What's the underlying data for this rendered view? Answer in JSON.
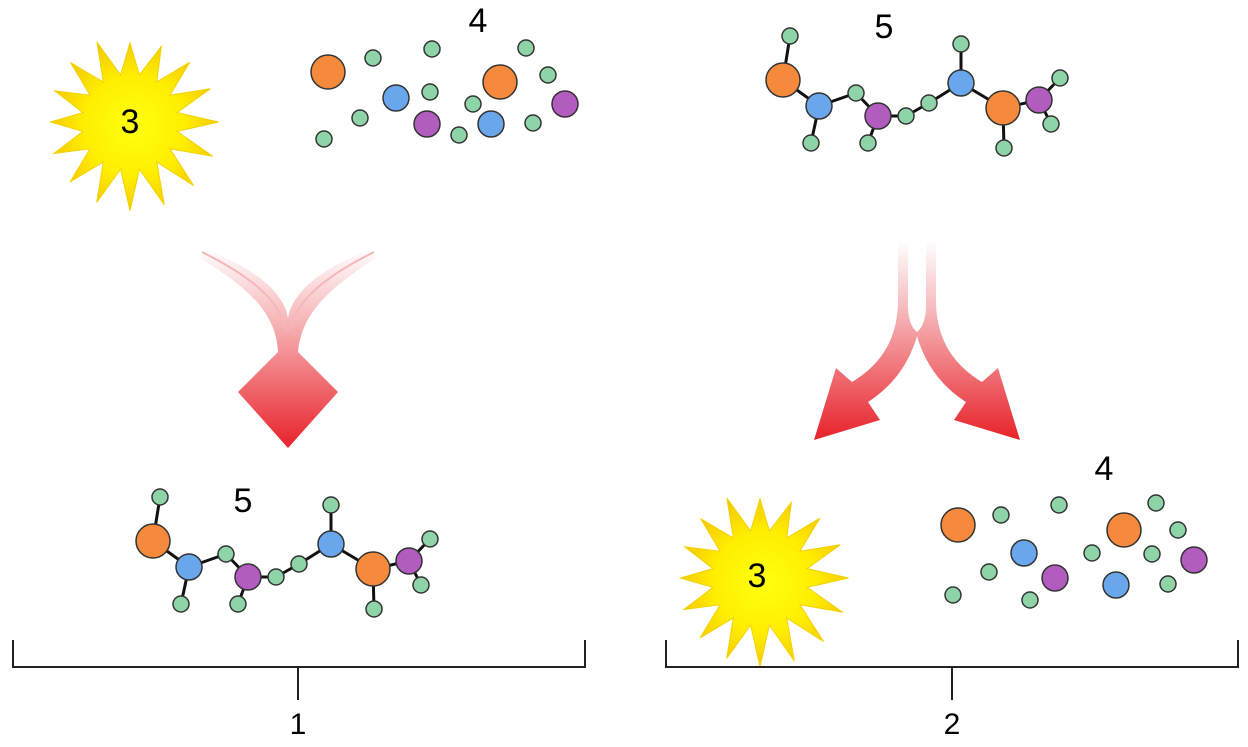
{
  "left_panel": {
    "energy_label": "3",
    "atoms_label": "4",
    "molecule_label": "5",
    "bracket_label": "1"
  },
  "right_panel": {
    "molecule_label": "5",
    "energy_label": "3",
    "atoms_label": "4",
    "bracket_label": "2"
  },
  "colors": {
    "orange_atom": "#f58a3c",
    "blue_atom": "#6aa6ec",
    "purple_atom": "#b25cc0",
    "green_atom": "#8fd4a8",
    "sun_yellow": "#ffee00",
    "arrow_red": "#e8222a",
    "bond": "#111111"
  },
  "icons": {
    "energy": "sun-burst-icon",
    "arrow_left": "merging-arrow-icon",
    "arrow_right": "splitting-arrow-icon"
  }
}
